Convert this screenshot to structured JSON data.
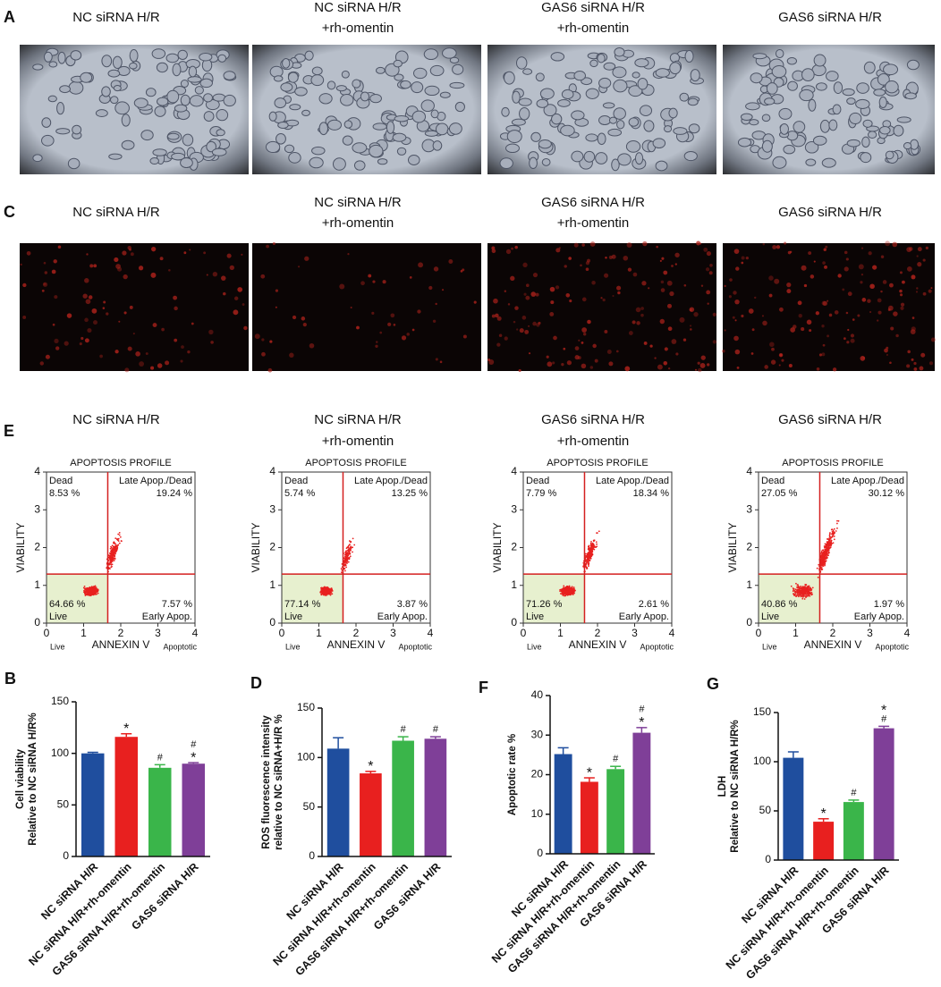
{
  "image_panels": [
    {
      "label": "A",
      "titles": [
        [
          "NC siRNA H/R"
        ],
        [
          "NC siRNA H/R",
          "+rh-omentin"
        ],
        [
          "GAS6 siRNA H/R",
          "+rh-omentin"
        ],
        [
          "GAS6 siRNA H/R"
        ]
      ]
    },
    {
      "label": "C",
      "titles": [
        [
          "NC siRNA H/R"
        ],
        [
          "NC siRNA H/R",
          "+rh-omentin"
        ],
        [
          "GAS6 siRNA H/R",
          "+rh-omentin"
        ],
        [
          "GAS6 siRNA H/R"
        ]
      ]
    }
  ],
  "flow": {
    "label": "E",
    "plot_title": "APOPTOSIS PROFILE",
    "ylabel": "VIABILITY",
    "xlabel": "ANNEXIN V",
    "x_left_note": "Live",
    "x_right_note": "Apoptotic",
    "quadrant_names": [
      "Dead",
      "Late Apop./Dead",
      "Live",
      "Early Apop."
    ],
    "xlim": [
      0,
      4
    ],
    "ylim": [
      0,
      4
    ],
    "xticks": [
      0,
      1,
      2,
      3,
      4
    ],
    "yticks": [
      0,
      1,
      2,
      3,
      4
    ],
    "gates": {
      "x": 1.65,
      "y": 1.3
    },
    "panels": [
      {
        "titles": [
          "NC siRNA H/R"
        ],
        "quadrants": [
          "8.53 %",
          "19.24 %",
          "64.66 %",
          "7.57 %"
        ]
      },
      {
        "titles": [
          "NC siRNA H/R",
          "+rh-omentin"
        ],
        "quadrants": [
          "5.74 %",
          "13.25 %",
          "77.14 %",
          "3.87 %"
        ]
      },
      {
        "titles": [
          "GAS6 siRNA H/R",
          "+rh-omentin"
        ],
        "quadrants": [
          "7.79 %",
          "18.34 %",
          "71.26 %",
          "2.61 %"
        ]
      },
      {
        "titles": [
          "GAS6 siRNA H/R"
        ],
        "quadrants": [
          "27.05 %",
          "30.12 %",
          "40.86 %",
          "1.97 %"
        ]
      }
    ]
  },
  "chart_data": [
    {
      "type": "bar",
      "label": "B",
      "ylabel": [
        "Cell viability",
        "Relative to NC siRNA H/R%"
      ],
      "categories": [
        "NC siRNA H/R",
        "NC siRNA H/R+rh-omentin",
        "GAS6 siRNA H/R+rh-omentin",
        "GAS6 siRNA H/R"
      ],
      "values": [
        100,
        116,
        86,
        90
      ],
      "errors": [
        1,
        3,
        3,
        1
      ],
      "annotations": [
        [],
        [
          "*"
        ],
        [
          "#"
        ],
        [
          "#",
          "*"
        ]
      ],
      "colors": [
        "#1f4e9e",
        "#e8201f",
        "#3ab54a",
        "#7f3f98"
      ],
      "ylim": [
        0,
        150
      ],
      "yticks": [
        0,
        50,
        100,
        150
      ]
    },
    {
      "type": "bar",
      "label": "D",
      "ylabel": [
        "ROS fluorescence intensity",
        "relative to NC siRNA+H/R %"
      ],
      "categories": [
        "NC siRNA H/R",
        "NC siRNA H/R+rh-omentin",
        "GAS6 siRNA H/R+rh-omentin",
        "GAS6 siRNA H/R"
      ],
      "values": [
        109,
        84,
        117,
        119
      ],
      "errors": [
        11,
        2,
        4,
        2
      ],
      "annotations": [
        [],
        [
          "*"
        ],
        [
          "#"
        ],
        [
          "#"
        ]
      ],
      "colors": [
        "#1f4e9e",
        "#e8201f",
        "#3ab54a",
        "#7f3f98"
      ],
      "ylim": [
        0,
        150
      ],
      "yticks": [
        0,
        50,
        100,
        150
      ]
    },
    {
      "type": "bar",
      "label": "F",
      "ylabel": [
        "Apoptotic rate %"
      ],
      "categories": [
        "NC siRNA H/R",
        "NC siRNA H/R+rh-omentin",
        "GAS6 siRNA H/R+rh-omentin",
        "GAS6 siRNA H/R"
      ],
      "values": [
        25.2,
        18.2,
        21.4,
        30.6
      ],
      "errors": [
        1.6,
        1.0,
        0.7,
        1.3
      ],
      "annotations": [
        [],
        [
          "*"
        ],
        [
          "#"
        ],
        [
          "#",
          "*"
        ]
      ],
      "colors": [
        "#1f4e9e",
        "#e8201f",
        "#3ab54a",
        "#7f3f98"
      ],
      "ylim": [
        0,
        40
      ],
      "yticks": [
        0,
        10,
        20,
        30,
        40
      ]
    },
    {
      "type": "bar",
      "label": "G",
      "ylabel": [
        "LDH",
        "Relative to NC siRNA H/R%"
      ],
      "categories": [
        "NC siRNA H/R",
        "NC siRNA H/R+rh-omentin",
        "GAS6 siRNA H/R+rh-omentin",
        "GAS6 siRNA H/R"
      ],
      "values": [
        104,
        39,
        59,
        134
      ],
      "errors": [
        6,
        3,
        2,
        2
      ],
      "annotations": [
        [],
        [
          "*"
        ],
        [
          "#"
        ],
        [
          "*",
          "#"
        ]
      ],
      "colors": [
        "#1f4e9e",
        "#e8201f",
        "#3ab54a",
        "#7f3f98"
      ],
      "ylim": [
        0,
        150
      ],
      "yticks": [
        0,
        50,
        100,
        150
      ]
    }
  ]
}
